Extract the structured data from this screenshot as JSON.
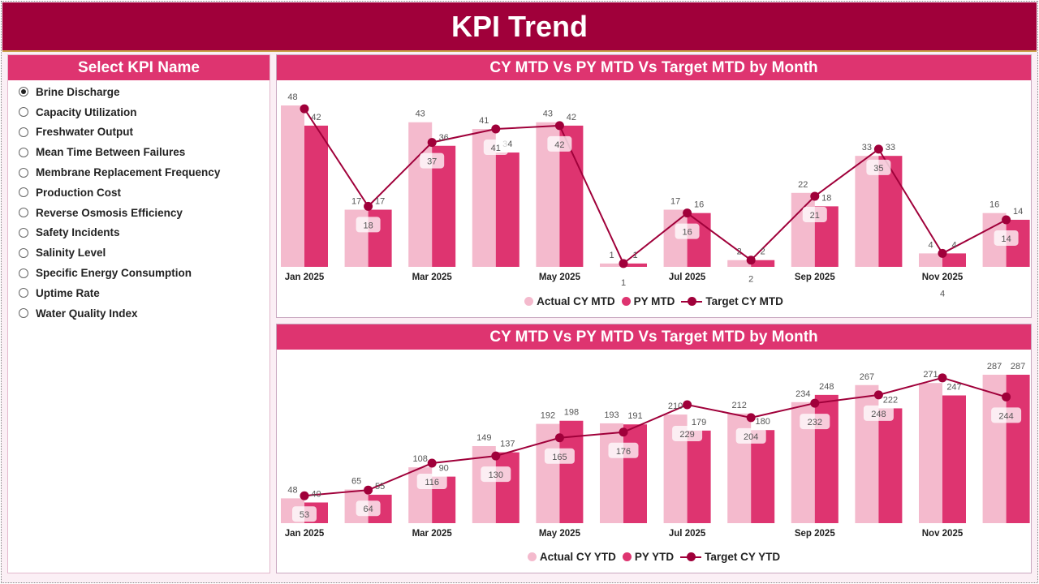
{
  "header": {
    "title": "KPI Trend"
  },
  "sidebar": {
    "title": "Select KPI Name",
    "selected": 0,
    "items": [
      "Brine Discharge",
      "Capacity Utilization",
      "Freshwater Output",
      "Mean Time Between Failures",
      "Membrane Replacement Frequency",
      "Production Cost",
      "Reverse Osmosis Efficiency",
      "Safety Incidents",
      "Salinity Level",
      "Specific Energy Consumption",
      "Uptime Rate",
      "Water Quality Index"
    ]
  },
  "colors": {
    "actual": "#F4BACD",
    "py": "#DE3470",
    "target": "#A0003A"
  },
  "chart_data": [
    {
      "type": "bar",
      "title": "CY MTD Vs PY MTD Vs Target MTD by Month",
      "categories": [
        "Jan 2025",
        "Feb 2025",
        "Mar 2025",
        "Apr 2025",
        "May 2025",
        "Jun 2025",
        "Jul 2025",
        "Aug 2025",
        "Sep 2025",
        "Oct 2025",
        "Nov 2025",
        "Dec 2025"
      ],
      "tick_labels": [
        "Jan 2025",
        "",
        "Mar 2025",
        "",
        "May 2025",
        "",
        "Jul 2025",
        "",
        "Sep 2025",
        "",
        "Nov 2025",
        ""
      ],
      "series": [
        {
          "name": "Actual CY MTD",
          "kind": "bar",
          "values": [
            48,
            17,
            43,
            41,
            43,
            1,
            17,
            2,
            22,
            33,
            4,
            16
          ]
        },
        {
          "name": "PY MTD",
          "kind": "bar",
          "values": [
            42,
            17,
            36,
            34,
            42,
            1,
            16,
            2,
            18,
            33,
            4,
            14
          ]
        },
        {
          "name": "Target CY MTD",
          "kind": "line",
          "values": [
            47,
            18,
            37,
            41,
            42,
            1,
            16,
            2,
            21,
            35,
            4,
            14
          ],
          "hidden_labels": [
            0
          ]
        }
      ],
      "ylim": [
        0,
        48
      ],
      "legend": "bottom-center"
    },
    {
      "type": "bar",
      "title": "CY MTD Vs PY MTD Vs Target MTD by Month",
      "categories": [
        "Jan 2025",
        "Feb 2025",
        "Mar 2025",
        "Apr 2025",
        "May 2025",
        "Jun 2025",
        "Jul 2025",
        "Aug 2025",
        "Sep 2025",
        "Oct 2025",
        "Nov 2025",
        "Dec 2025"
      ],
      "tick_labels": [
        "Jan 2025",
        "",
        "Mar 2025",
        "",
        "May 2025",
        "",
        "Jul 2025",
        "",
        "Sep 2025",
        "",
        "Nov 2025",
        ""
      ],
      "series": [
        {
          "name": "Actual CY YTD",
          "kind": "bar",
          "values": [
            48,
            65,
            108,
            149,
            192,
            193,
            210,
            212,
            234,
            267,
            271,
            287
          ]
        },
        {
          "name": "PY YTD",
          "kind": "bar",
          "values": [
            40,
            55,
            90,
            137,
            198,
            191,
            179,
            180,
            248,
            222,
            247,
            287
          ]
        },
        {
          "name": "Target CY YTD",
          "kind": "line",
          "values": [
            53,
            64,
            116,
            130,
            165,
            176,
            229,
            204,
            232,
            248,
            281,
            244
          ],
          "hidden_labels": [
            10
          ]
        }
      ],
      "ylim": [
        0,
        287
      ],
      "legend": "bottom-center"
    }
  ]
}
